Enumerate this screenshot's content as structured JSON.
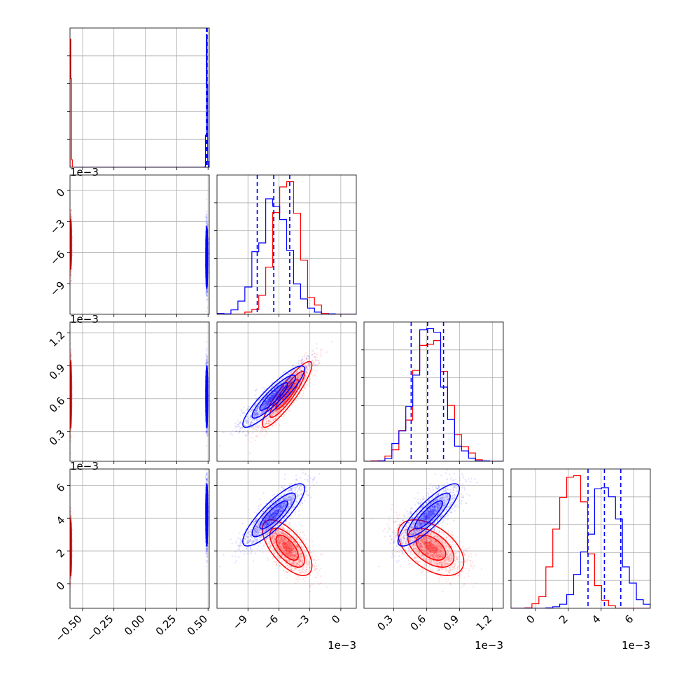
{
  "chart_data": {
    "type": "corner",
    "title": "",
    "series": [
      {
        "color": "#0000ff"
      },
      {
        "color": "#ff0000"
      }
    ],
    "variables": [
      {
        "index": 0,
        "range": [
          -0.6,
          0.51
        ],
        "ticks": [
          -0.5,
          -0.25,
          0.0,
          0.25,
          0.5
        ],
        "tick_labels": [
          "−0.50",
          "−0.25",
          "0.00",
          "0.25",
          "0.50"
        ],
        "offset_label": ""
      },
      {
        "index": 1,
        "range": [
          -12.0,
          1.5
        ],
        "ticks": [
          -9,
          -6,
          -3,
          0
        ],
        "tick_labels": [
          "−9",
          "−6",
          "−3",
          "0"
        ],
        "offset_label": "1e−3"
      },
      {
        "index": 2,
        "range": [
          0.03,
          1.3
        ],
        "ticks": [
          0.3,
          0.6,
          0.9,
          1.2
        ],
        "tick_labels": [
          "0.3",
          "0.6",
          "0.9",
          "1.2"
        ],
        "offset_label": "1e−3"
      },
      {
        "index": 3,
        "range": [
          -1.5,
          7.0
        ],
        "ticks": [
          0,
          2,
          4,
          6
        ],
        "tick_labels": [
          "0",
          "2",
          "4",
          "6"
        ],
        "offset_label": "1e−3"
      }
    ],
    "distributions": {
      "blue": {
        "means": [
          0.49,
          -6.5,
          0.62,
          4.2
        ],
        "stds": [
          0.004,
          1.5,
          0.14,
          0.95
        ],
        "corr": {
          "1-2": 0.9,
          "1-3": 0.85,
          "2-3": 0.85
        }
      },
      "red": {
        "means": [
          -0.595,
          -5.2,
          0.64,
          2.2
        ],
        "stds": [
          0.004,
          1.2,
          0.15,
          0.85
        ],
        "corr": {
          "1-2": 0.9,
          "1-3": -0.65,
          "2-3": -0.5
        }
      }
    },
    "histograms": [
      {
        "variable": 0,
        "blue_quantile_lines": [
          0.487,
          0.49,
          0.493
        ],
        "red_quantile_lines": []
      },
      {
        "variable": 1,
        "blue_quantile_lines": [
          -8.1,
          -6.5,
          -4.95
        ],
        "red_quantile_lines": []
      },
      {
        "variable": 2,
        "blue_quantile_lines": [
          0.46,
          0.61,
          0.755
        ],
        "red_quantile_lines": []
      },
      {
        "variable": 3,
        "blue_quantile_lines": [
          3.2,
          4.2,
          5.2
        ],
        "red_quantile_lines": []
      }
    ],
    "grid": true,
    "legend": "none"
  }
}
